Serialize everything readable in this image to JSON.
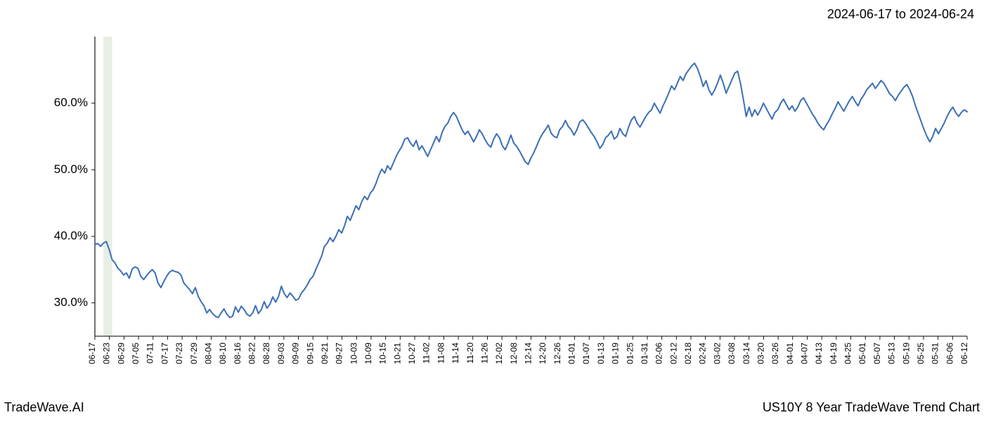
{
  "header": {
    "date_range": "2024-06-17 to 2024-06-24"
  },
  "footer": {
    "brand": "TradeWave.AI",
    "title": "US10Y 8 Year TradeWave Trend Chart"
  },
  "chart": {
    "type": "line",
    "background_color": "#ffffff",
    "axis_color": "#000000",
    "line_color": "#3b6eb5",
    "line_width": 2.0,
    "highlight_band": {
      "fill": "#dfe8d9",
      "opacity": 0.75,
      "x_start_idx": 3,
      "x_end_idx": 6
    },
    "ylim": [
      25,
      70
    ],
    "yticks": [
      30.0,
      40.0,
      50.0,
      60.0
    ],
    "ytick_labels": [
      "30.0%",
      "40.0%",
      "50.0%",
      "60.0%"
    ],
    "xtick_labels": [
      "06-17",
      "06-23",
      "06-29",
      "07-05",
      "07-11",
      "07-17",
      "07-23",
      "07-29",
      "08-04",
      "08-10",
      "08-16",
      "08-22",
      "08-28",
      "09-03",
      "09-09",
      "09-15",
      "09-21",
      "09-27",
      "10-03",
      "10-09",
      "10-15",
      "10-21",
      "10-27",
      "11-02",
      "11-08",
      "11-14",
      "11-20",
      "11-26",
      "12-02",
      "12-08",
      "12-14",
      "12-20",
      "12-26",
      "01-01",
      "01-07",
      "01-13",
      "01-19",
      "01-25",
      "01-31",
      "02-06",
      "02-12",
      "02-18",
      "02-24",
      "03-02",
      "03-08",
      "03-14",
      "03-20",
      "03-26",
      "04-01",
      "04-07",
      "04-13",
      "04-19",
      "04-25",
      "05-01",
      "05-07",
      "05-13",
      "05-19",
      "05-25",
      "05-31",
      "06-06",
      "06-12"
    ],
    "xtick_fontsize": 12,
    "ytick_fontsize": 17,
    "series": [
      38.8,
      38.9,
      38.5,
      39.0,
      39.2,
      38.0,
      36.5,
      36.0,
      35.2,
      34.8,
      34.2,
      34.5,
      33.7,
      35.1,
      35.4,
      35.2,
      34.0,
      33.5,
      34.1,
      34.6,
      35.0,
      34.5,
      33.0,
      32.3,
      33.2,
      34.0,
      34.6,
      34.9,
      34.7,
      34.6,
      34.2,
      33.0,
      32.5,
      32.0,
      31.4,
      32.3,
      31.0,
      30.2,
      29.6,
      28.5,
      29.0,
      28.4,
      28.0,
      27.8,
      28.5,
      29.1,
      28.3,
      27.8,
      28.0,
      29.4,
      28.6,
      29.5,
      29.0,
      28.3,
      28.0,
      28.5,
      29.6,
      28.4,
      29.0,
      30.2,
      29.2,
      29.8,
      30.9,
      30.1,
      31.0,
      32.5,
      31.4,
      30.8,
      31.5,
      31.0,
      30.4,
      30.6,
      31.5,
      32.0,
      32.7,
      33.5,
      34.0,
      35.0,
      36.0,
      37.0,
      38.5,
      39.0,
      39.8,
      39.2,
      40.0,
      41.0,
      40.5,
      41.6,
      43.0,
      42.4,
      43.5,
      44.6,
      44.0,
      45.2,
      46.0,
      45.5,
      46.5,
      47.0,
      48.0,
      49.2,
      50.1,
      49.5,
      50.6,
      50.0,
      51.0,
      52.0,
      52.8,
      53.5,
      54.6,
      54.8,
      54.0,
      53.5,
      54.4,
      53.0,
      53.6,
      52.8,
      52.0,
      53.0,
      54.0,
      55.0,
      54.2,
      55.6,
      56.5,
      57.0,
      58.0,
      58.6,
      58.0,
      57.0,
      56.0,
      55.3,
      55.8,
      55.0,
      54.2,
      55.0,
      56.0,
      55.4,
      54.5,
      53.8,
      53.4,
      54.6,
      55.4,
      54.8,
      53.6,
      53.0,
      54.0,
      55.2,
      54.0,
      53.5,
      52.8,
      52.0,
      51.2,
      50.8,
      51.8,
      52.6,
      53.6,
      54.6,
      55.4,
      56.0,
      56.7,
      55.5,
      55.0,
      54.8,
      56.0,
      56.5,
      57.4,
      56.5,
      56.0,
      55.2,
      56.0,
      57.2,
      57.5,
      57.0,
      56.3,
      55.6,
      55.0,
      54.2,
      53.2,
      53.8,
      54.8,
      55.2,
      55.8,
      54.6,
      55.0,
      56.2,
      55.4,
      55.0,
      56.4,
      57.5,
      58.0,
      57.0,
      56.4,
      57.2,
      58.0,
      58.6,
      59.0,
      60.0,
      59.2,
      58.5,
      59.6,
      60.5,
      61.5,
      62.6,
      62.0,
      63.0,
      64.0,
      63.4,
      64.4,
      65.0,
      65.6,
      66.0,
      65.2,
      64.0,
      62.5,
      63.4,
      62.0,
      61.2,
      62.0,
      63.0,
      64.2,
      63.0,
      61.5,
      62.5,
      63.5,
      64.5,
      64.8,
      63.0,
      60.6,
      58.0,
      59.4,
      58.0,
      59.0,
      58.2,
      59.0,
      60.0,
      59.2,
      58.4,
      57.6,
      58.6,
      59.0,
      60.0,
      60.6,
      59.8,
      59.0,
      59.6,
      58.8,
      59.4,
      60.4,
      60.8,
      60.0,
      59.2,
      58.4,
      57.8,
      57.0,
      56.4,
      56.0,
      56.8,
      57.5,
      58.4,
      59.2,
      60.2,
      59.5,
      58.8,
      59.6,
      60.4,
      61.0,
      60.2,
      59.6,
      60.6,
      61.2,
      62.0,
      62.5,
      63.0,
      62.2,
      62.8,
      63.4,
      63.0,
      62.2,
      61.4,
      61.0,
      60.4,
      61.2,
      61.8,
      62.4,
      62.8,
      62.0,
      61.0,
      59.6,
      58.4,
      57.2,
      56.0,
      55.0,
      54.2,
      55.0,
      56.2,
      55.4,
      56.2,
      57.0,
      58.0,
      58.8,
      59.4,
      58.6,
      58.0,
      58.6,
      59.0,
      58.7
    ]
  }
}
